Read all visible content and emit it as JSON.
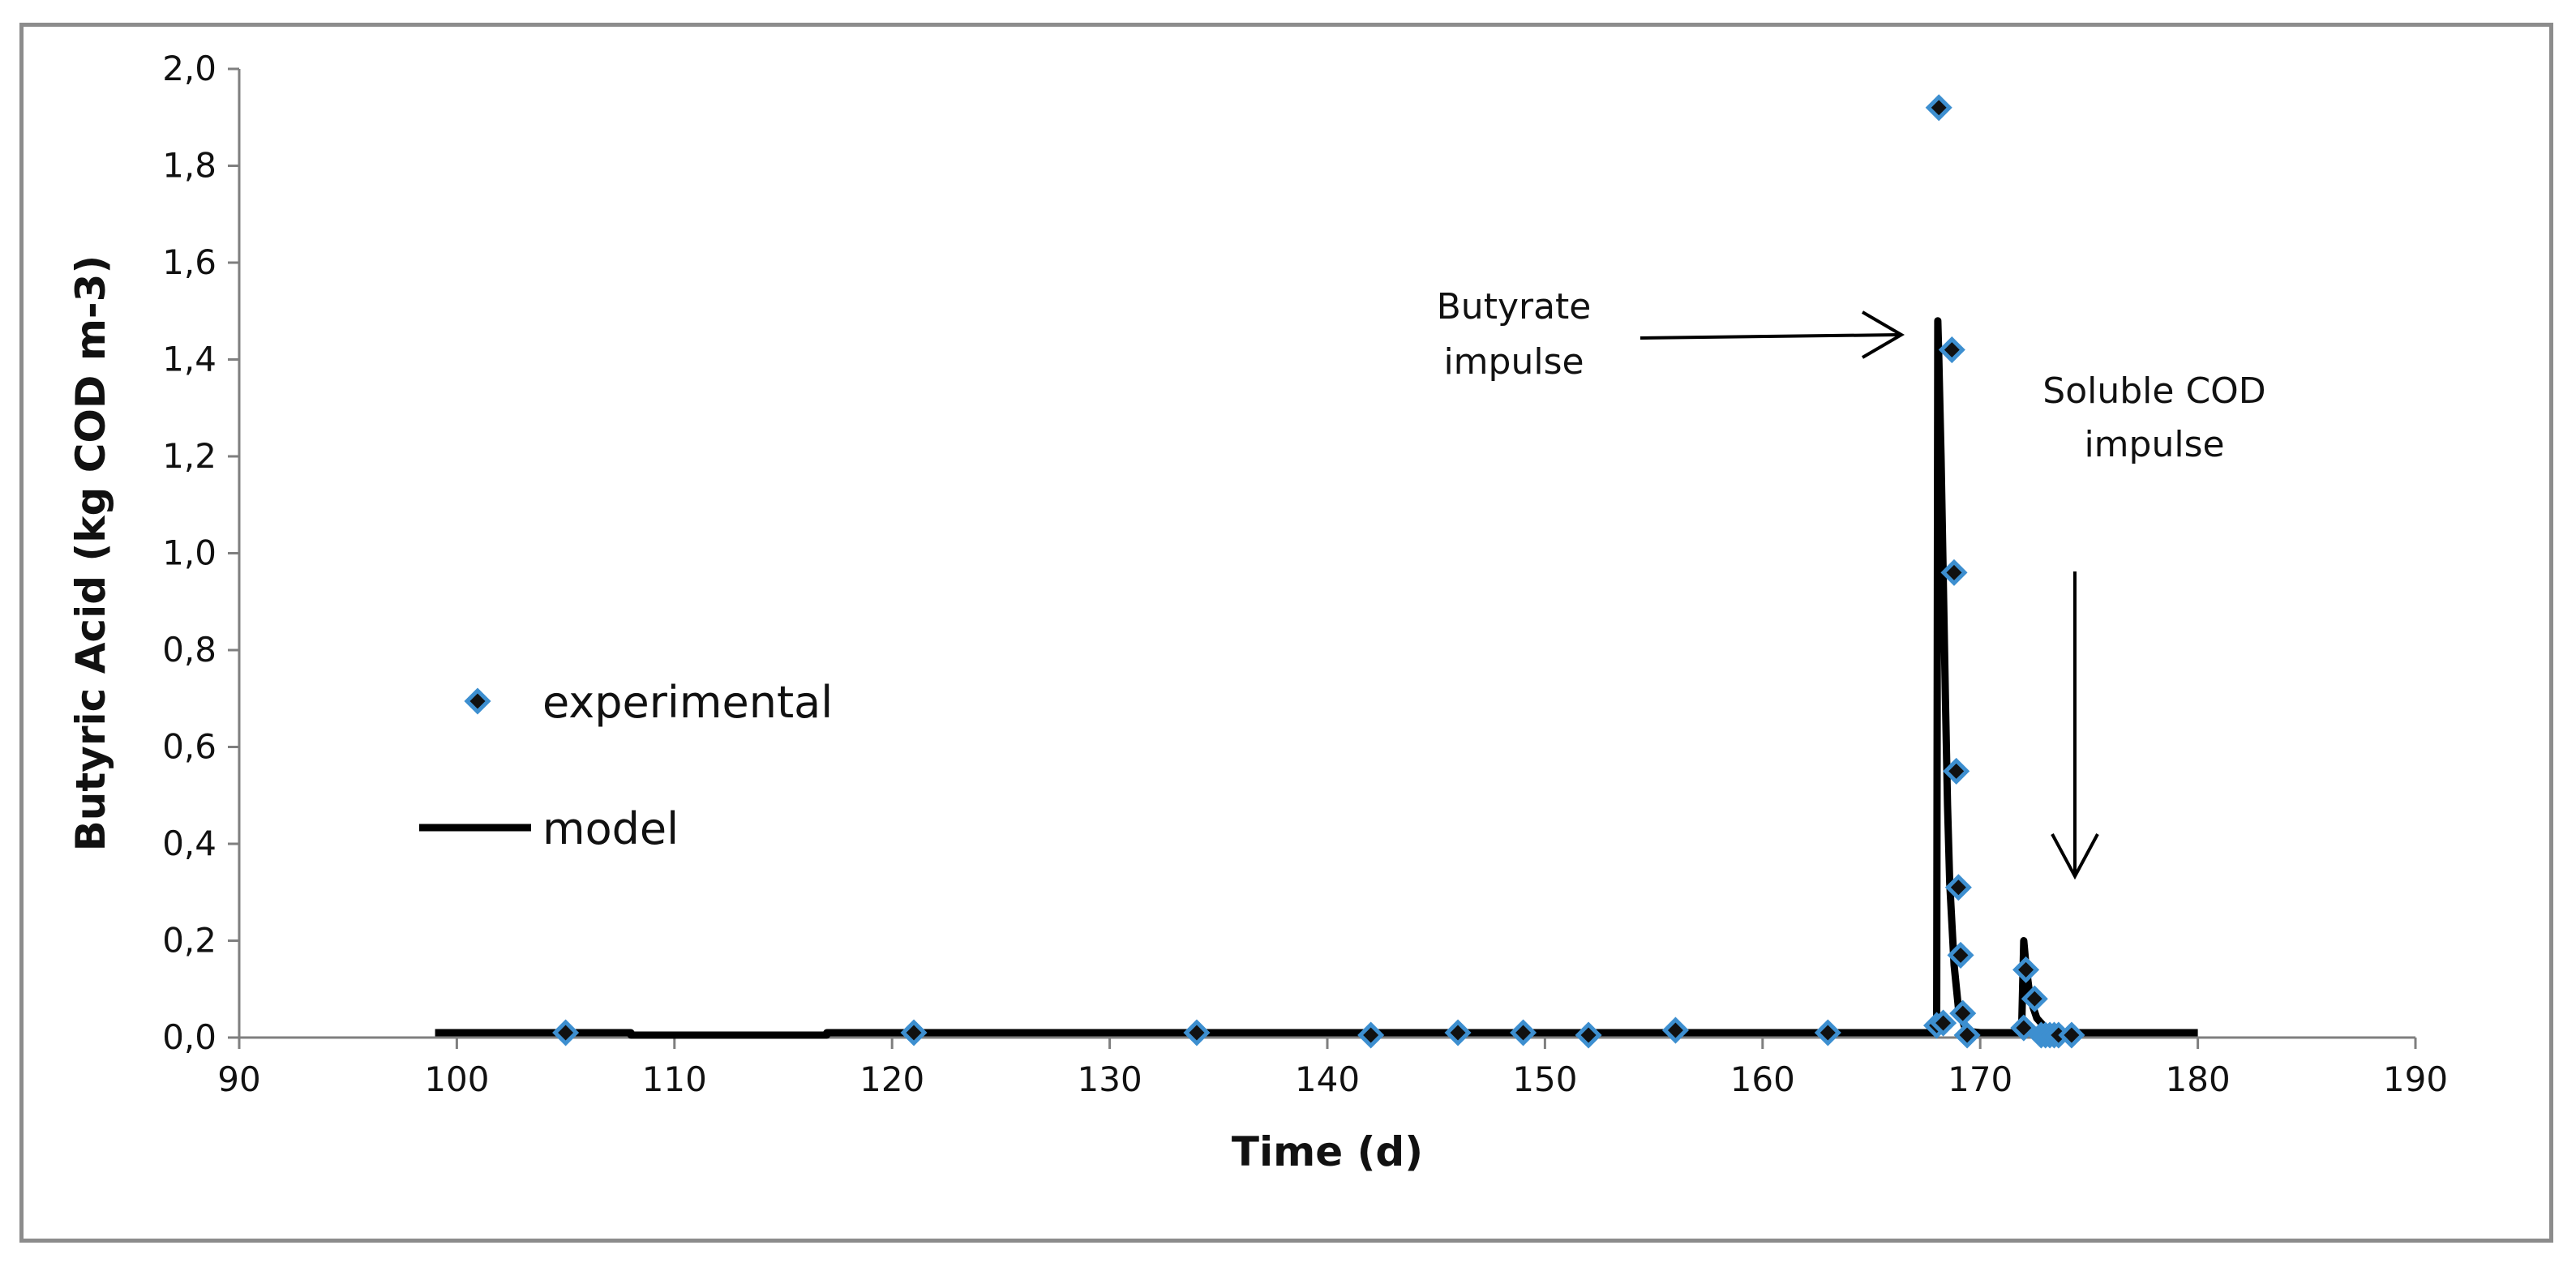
{
  "chart_data": {
    "type": "scatter",
    "title": "",
    "xlabel": "Time (d)",
    "ylabel": "Butyric Acid (kg COD m-3)",
    "xlim": [
      90,
      190
    ],
    "ylim": [
      0,
      2.0
    ],
    "xticks": [
      90,
      100,
      110,
      120,
      130,
      140,
      150,
      160,
      170,
      180,
      190
    ],
    "yticks": [
      0,
      0.2,
      0.4,
      0.6,
      0.8,
      1.0,
      1.2,
      1.4,
      1.6,
      1.8,
      2.0
    ],
    "xtick_labels": [
      "90",
      "100",
      "110",
      "120",
      "130",
      "140",
      "150",
      "160",
      "170",
      "180",
      "190"
    ],
    "ytick_labels": [
      "0,0",
      "0,2",
      "0,4",
      "0,6",
      "0,8",
      "1,0",
      "1,2",
      "1,4",
      "1,6",
      "1,8",
      "2,0"
    ],
    "grid": false,
    "legend_position": "left",
    "series": [
      {
        "name": "experimental",
        "kind": "scatter",
        "marker": "diamond",
        "marker_color": "#111111",
        "marker_edge_color": "#3d8fd0",
        "x": [
          105,
          121,
          134,
          142,
          146,
          149,
          152,
          156,
          163,
          168,
          168.1,
          168.3,
          168.7,
          168.8,
          168.9,
          169.0,
          169.1,
          169.2,
          169.4,
          172,
          172.1,
          172.5,
          172.8,
          173.0,
          173.2,
          173.4,
          173.6,
          174.2
        ],
        "y": [
          0.01,
          0.01,
          0.01,
          0.005,
          0.01,
          0.01,
          0.005,
          0.015,
          0.01,
          0.025,
          1.92,
          0.03,
          1.42,
          0.96,
          0.55,
          0.31,
          0.17,
          0.05,
          0.005,
          0.02,
          0.14,
          0.08,
          0.005,
          0.005,
          0.005,
          0.005,
          0.005,
          0.005
        ]
      },
      {
        "name": "model",
        "kind": "line",
        "color": "#000000",
        "x": [
          99,
          108,
          108,
          117,
          117,
          167.9,
          168.0,
          168.05,
          168.1,
          168.2,
          168.3,
          168.4,
          168.5,
          168.6,
          168.8,
          169.0,
          169.3,
          169.6,
          170,
          171.9,
          172.0,
          172.1,
          172.3,
          172.6,
          173.0,
          173.5,
          174.5,
          180
        ],
        "y": [
          0.01,
          0.01,
          0.005,
          0.005,
          0.01,
          0.01,
          0.01,
          1.48,
          1.4,
          1.2,
          0.95,
          0.7,
          0.48,
          0.32,
          0.15,
          0.06,
          0.02,
          0.012,
          0.01,
          0.01,
          0.2,
          0.15,
          0.08,
          0.04,
          0.02,
          0.012,
          0.01,
          0.01
        ]
      }
    ],
    "annotations": [
      {
        "lines": [
          "Butyrate",
          "impulse"
        ],
        "arrow": "right"
      },
      {
        "lines": [
          "Soluble COD",
          "impulse"
        ],
        "arrow": "down"
      }
    ]
  }
}
